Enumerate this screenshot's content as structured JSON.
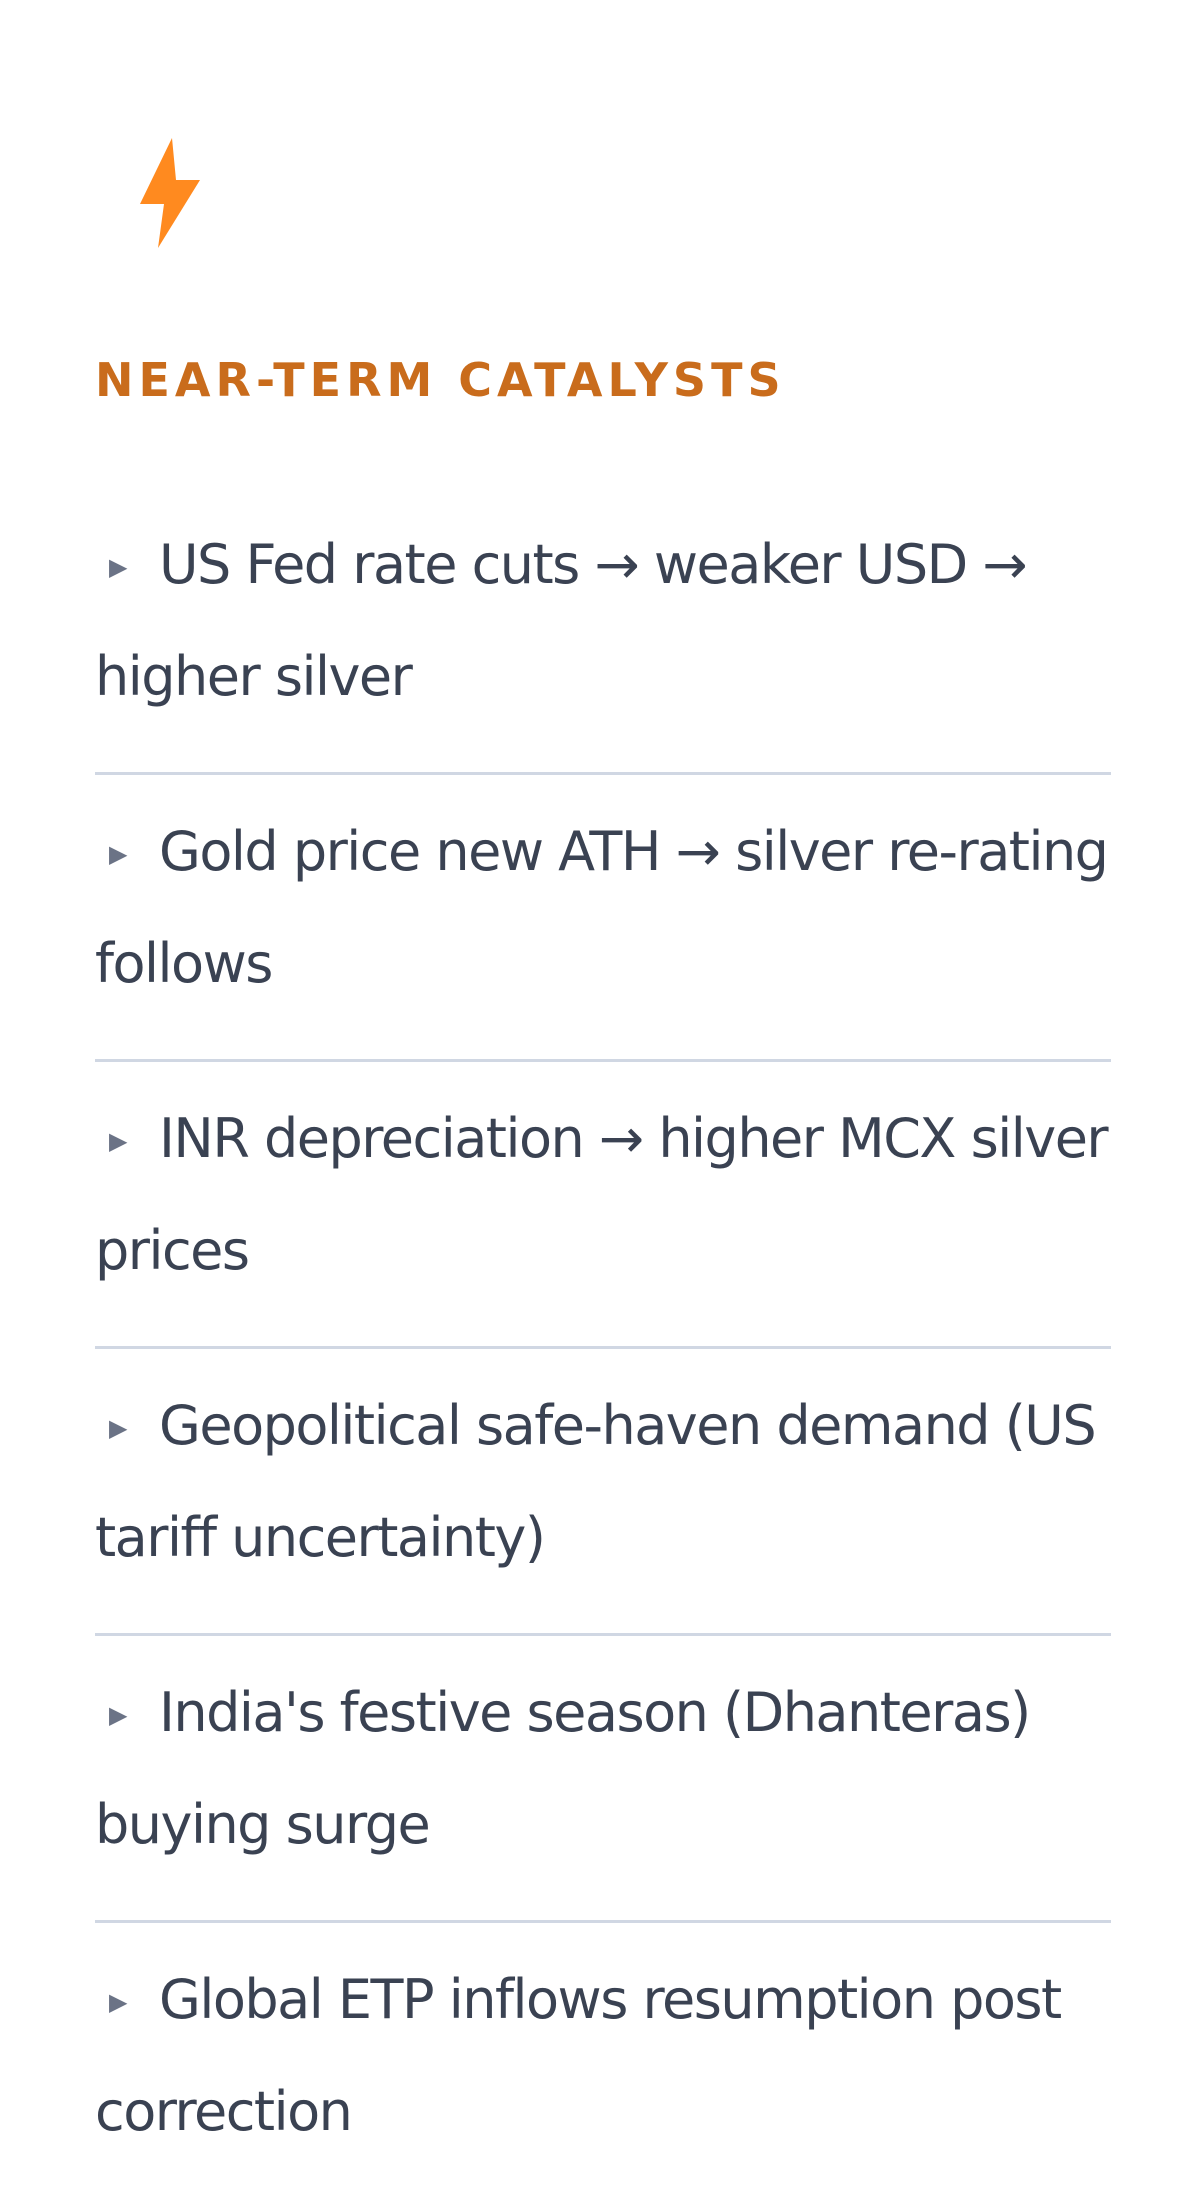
{
  "card": {
    "icon": "lightning-bolt-icon",
    "icon_color": "#ff8a1f",
    "heading": "NEAR-TERM CATALYSTS",
    "heading_color": "#c96c1c",
    "bullet": "▶",
    "items": [
      "US Fed rate cuts → weaker USD → higher silver",
      "Gold price new ATH → silver re-rating follows",
      "INR depreciation → higher MCX silver prices",
      "Geopolitical safe-haven demand (US tariff uncertainty)",
      "India's festive season (Dhanteras) buying surge",
      "Global ETP inflows resumption post correction"
    ]
  }
}
